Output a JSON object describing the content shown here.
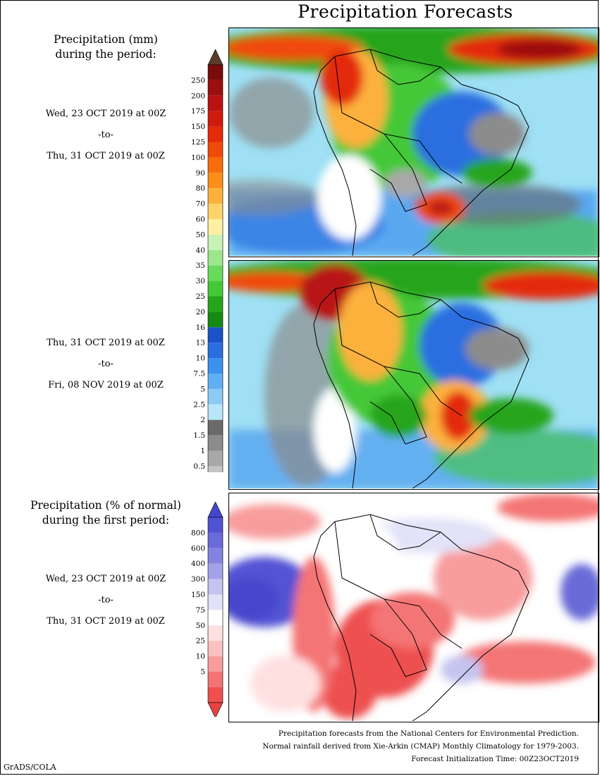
{
  "title": "Precipitation Forecasts",
  "legend_mm": {
    "heading_line1": "Precipitation (mm)",
    "heading_line2": "during the period:",
    "levels": [
      "250",
      "200",
      "175",
      "150",
      "125",
      "100",
      "90",
      "80",
      "70",
      "60",
      "50",
      "40",
      "35",
      "30",
      "25",
      "20",
      "16",
      "13",
      "10",
      "7.5",
      "5",
      "2.5",
      "2",
      "1.5",
      "1",
      "0.5"
    ],
    "colors": [
      "#7a0c0c",
      "#9c0f0f",
      "#b81212",
      "#d01a0d",
      "#e42a08",
      "#f04a08",
      "#f86c0c",
      "#fb8f1a",
      "#fdb13c",
      "#fdd36a",
      "#fdf0a2",
      "#c9f2b6",
      "#9ce68c",
      "#68da5c",
      "#44c838",
      "#26a51c",
      "#148a12",
      "#1c52c8",
      "#2a6ee0",
      "#3c90ee",
      "#62aef4",
      "#8ccaf6",
      "#b8e6f8",
      "#6a6a6a",
      "#8c8c8c",
      "#a8a8a8",
      "#c4c4c4"
    ],
    "top_cap_color": "#5c3a2a"
  },
  "legend_pct": {
    "heading_line1": "Precipitation (% of normal)",
    "heading_line2": "during the first period:",
    "levels": [
      "800",
      "600",
      "400",
      "300",
      "150",
      "75",
      "50",
      "25",
      "10",
      "5"
    ],
    "colors": [
      "#5252d4",
      "#6a6ad8",
      "#8484e0",
      "#a2a2e8",
      "#c4c4f0",
      "#e2e2f8",
      "#ffffff",
      "#ffe0e0",
      "#fcc0c0",
      "#f89c9c",
      "#f47474",
      "#ee5050"
    ],
    "top_cap_color": "#4646cc",
    "bottom_cap_color": "#e84040"
  },
  "periods": [
    {
      "start": "Wed, 23 OCT 2019 at 00Z",
      "sep": "-to-",
      "end": "Thu, 31 OCT 2019 at 00Z"
    },
    {
      "start": "Thu, 31 OCT 2019 at 00Z",
      "sep": "-to-",
      "end": "Fri, 08 NOV 2019 at 00Z"
    },
    {
      "start": "Wed, 23 OCT 2019 at 00Z",
      "sep": "-to-",
      "end": "Thu, 31 OCT 2019 at 00Z"
    }
  ],
  "footer": {
    "line1": "Precipitation forecasts from the National Centers for Environmental Prediction.",
    "line2": "Normal rainfall derived from Xie-Arkin (CMAP) Monthly Climatology for 1979-2003.",
    "line3": "Forecast Initialization Time: 00Z23OCT2019"
  },
  "credit": "GrADS/COLA"
}
